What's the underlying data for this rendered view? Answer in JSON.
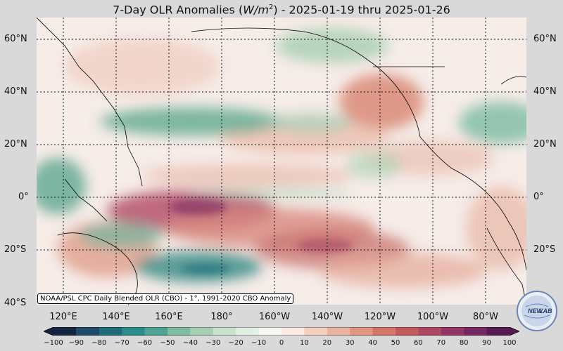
{
  "title_prefix": "7-Day OLR Anomalies (",
  "title_unit": "W/m",
  "title_sup": "2",
  "title_suffix": ") - 2025-01-19 thru 2025-01-26",
  "lat_labels": [
    "60°N",
    "40°N",
    "20°N",
    "0°",
    "20°S",
    "40°S"
  ],
  "lon_labels": [
    "120°E",
    "140°E",
    "160°E",
    "180°",
    "160°W",
    "140°W",
    "120°W",
    "100°W",
    "80°W"
  ],
  "source_note": "NOAA/PSL CPC Daily Blended OLR (CBO) - 1°, 1991-2020 CBO Anomaly",
  "colorbar": {
    "ticks": [
      "−100",
      "−90",
      "−80",
      "−70",
      "−60",
      "−50",
      "−40",
      "−30",
      "−20",
      "−10",
      "0",
      "10",
      "20",
      "30",
      "40",
      "50",
      "60",
      "70",
      "80",
      "90",
      "100"
    ],
    "colors": [
      "#15253f",
      "#1d4a66",
      "#1f6b79",
      "#2a8c86",
      "#4ea394",
      "#7cbba2",
      "#a6d0b3",
      "#c9e2cc",
      "#e4efe4",
      "#f5f5f2",
      "#fbe9e3",
      "#f4cfc2",
      "#eab3a0",
      "#df9580",
      "#d27766",
      "#c25c5c",
      "#ad4761",
      "#943568",
      "#76275f",
      "#561a4f"
    ]
  },
  "logo": {
    "text_left": "NEW",
    "text_right": "LAB"
  }
}
